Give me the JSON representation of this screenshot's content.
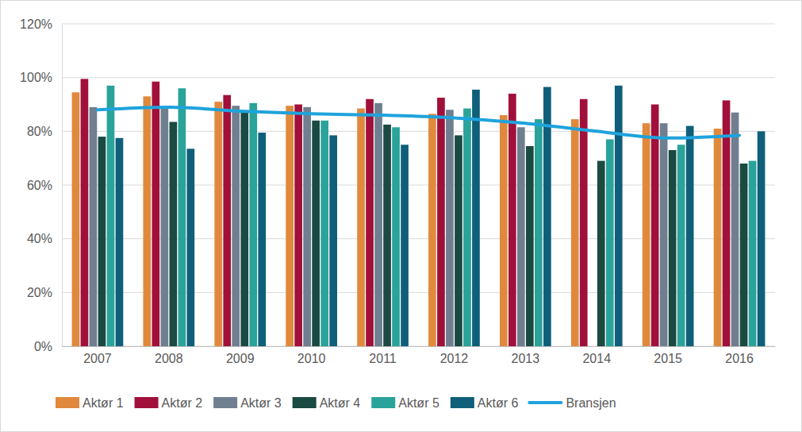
{
  "chart_data": {
    "type": "bar",
    "categories": [
      "2007",
      "2008",
      "2009",
      "2010",
      "2011",
      "2012",
      "2013",
      "2014",
      "2015",
      "2016"
    ],
    "series": [
      {
        "name": "Aktør 1",
        "color": "#e0893d",
        "values": [
          94.5,
          93,
          91,
          89.5,
          88.5,
          86.5,
          86,
          84.5,
          83,
          81
        ]
      },
      {
        "name": "Aktør 2",
        "color": "#a0103a",
        "values": [
          99.5,
          98.5,
          93.5,
          90,
          92,
          92.5,
          94,
          92,
          90,
          91.5
        ]
      },
      {
        "name": "Aktør 3",
        "color": "#6f7f8f",
        "values": [
          89,
          89,
          89.5,
          89,
          90.5,
          88,
          81.5,
          null,
          83,
          87
        ]
      },
      {
        "name": "Aktør 4",
        "color": "#1a4a42",
        "values": [
          78,
          83.5,
          87,
          84,
          82.5,
          78.5,
          74.5,
          69,
          73,
          68
        ]
      },
      {
        "name": "Aktør 5",
        "color": "#2aa39a",
        "values": [
          97,
          96,
          90.5,
          84,
          81.5,
          88.5,
          84.5,
          77,
          75,
          69
        ]
      },
      {
        "name": "Aktør 6",
        "color": "#0f5f7a",
        "values": [
          77.5,
          73.5,
          79.5,
          78.5,
          75,
          95.5,
          96.5,
          97,
          82,
          80
        ]
      },
      {
        "name": "Bransjen",
        "color": "#1fa3dc",
        "type": "line",
        "values": [
          88,
          89,
          87.5,
          86.5,
          86,
          85,
          83,
          80,
          77.5,
          78.5
        ]
      }
    ],
    "ylim": [
      0,
      120
    ],
    "yticks": [
      {
        "value": 0,
        "label": "0%"
      },
      {
        "value": 20,
        "label": "20%"
      },
      {
        "value": 40,
        "label": "40%"
      },
      {
        "value": 60,
        "label": "60%"
      },
      {
        "value": 80,
        "label": "80%"
      },
      {
        "value": 100,
        "label": "100%"
      },
      {
        "value": 120,
        "label": "120%"
      }
    ],
    "grid": true,
    "legend": "bottom"
  }
}
